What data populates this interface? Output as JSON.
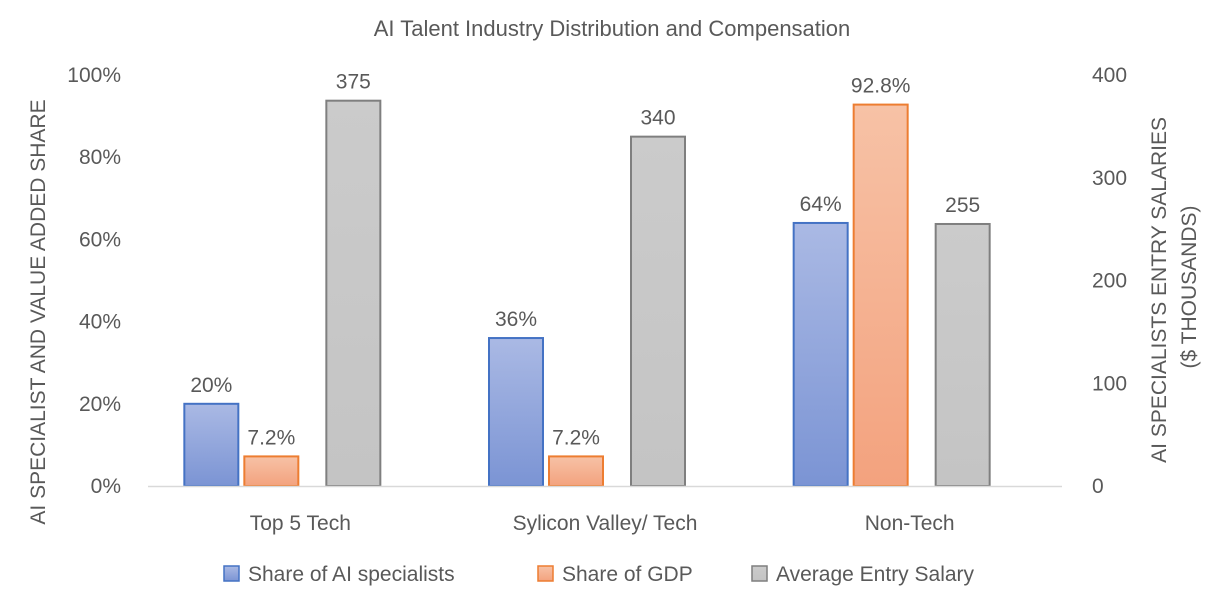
{
  "chart_data": {
    "type": "bar",
    "title": "AI Talent Industry Distribution and Compensation",
    "categories": [
      "Top 5 Tech",
      "Sylicon Valley/ Tech",
      "Non-Tech"
    ],
    "series": [
      {
        "name": "Share of AI specialists",
        "axis": "left",
        "values": [
          20,
          36,
          64
        ],
        "labels": [
          "20%",
          "36%",
          "64%"
        ],
        "color": "#7f98d6",
        "stroke": "#4472c4"
      },
      {
        "name": "Share of GDP",
        "axis": "left",
        "values": [
          7.2,
          7.2,
          92.8
        ],
        "labels": [
          "7.2%",
          "7.2%",
          "92.8%"
        ],
        "color": "#f5a886",
        "stroke": "#ed7d31"
      },
      {
        "name": "Average Entry Salary",
        "axis": "right",
        "values": [
          375,
          340,
          255
        ],
        "labels": [
          "375",
          "340",
          "255"
        ],
        "color": "#c8c8c8",
        "stroke": "#7f7f7f"
      }
    ],
    "y_left": {
      "label": "AI SPECIALIST AND VALUE ADDED SHARE",
      "range": [
        0,
        100
      ],
      "ticks": [
        "0%",
        "20%",
        "40%",
        "60%",
        "80%",
        "100%"
      ]
    },
    "y_right": {
      "label_lines": [
        "AI SPECIALISTS ENTRY SALARIES",
        "($ THOUSANDS)"
      ],
      "range": [
        0,
        400
      ],
      "ticks": [
        "0",
        "100",
        "200",
        "300",
        "400"
      ]
    },
    "grid": false,
    "legend_position": "bottom"
  }
}
